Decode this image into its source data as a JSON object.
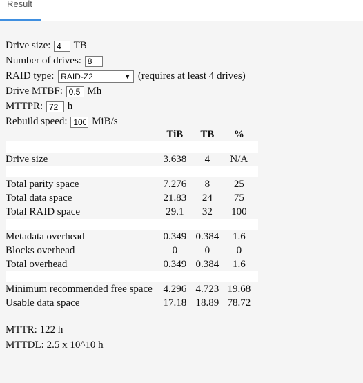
{
  "tab": {
    "label": "Result"
  },
  "form": {
    "drive_size_label": "Drive size:",
    "drive_size_value": "4",
    "drive_size_unit": "TB",
    "num_drives_label": "Number of drives:",
    "num_drives_value": "8",
    "raid_type_label": "RAID type:",
    "raid_type_value": "RAID-Z2",
    "raid_type_note": "(requires at least 4 drives)",
    "mtbf_label": "Drive MTBF:",
    "mtbf_value": "0.5",
    "mtbf_unit": "Mh",
    "mttpr_label": "MTTPR:",
    "mttpr_value": "72",
    "mttpr_unit": "h",
    "rebuild_label": "Rebuild speed:",
    "rebuild_value": "100",
    "rebuild_unit": "MiB/s"
  },
  "table": {
    "headers": [
      "TiB",
      "TB",
      "%"
    ],
    "rows": {
      "drive_size": {
        "label": "Drive size",
        "tib": "3.638",
        "tb": "4",
        "pct": "N/A"
      },
      "parity": {
        "label": "Total parity space",
        "tib": "7.276",
        "tb": "8",
        "pct": "25"
      },
      "data": {
        "label": "Total data space",
        "tib": "21.83",
        "tb": "24",
        "pct": "75"
      },
      "raid": {
        "label": "Total RAID space",
        "tib": "29.1",
        "tb": "32",
        "pct": "100"
      },
      "metadata": {
        "label": "Metadata overhead",
        "tib": "0.349",
        "tb": "0.384",
        "pct": "1.6"
      },
      "blocks": {
        "label": "Blocks overhead",
        "tib": "0",
        "tb": "0",
        "pct": "0"
      },
      "overhead": {
        "label": "Total overhead",
        "tib": "0.349",
        "tb": "0.384",
        "pct": "1.6"
      },
      "min_free": {
        "label": "Minimum recommended free space",
        "tib": "4.296",
        "tb": "4.723",
        "pct": "19.68"
      },
      "usable": {
        "label": "Usable data space",
        "tib": "17.18",
        "tb": "18.89",
        "pct": "78.72"
      }
    }
  },
  "summary": {
    "mttr": "MTTR: 122 h",
    "mttdl": "MTTDL: 2.5 x 10^10 h"
  }
}
